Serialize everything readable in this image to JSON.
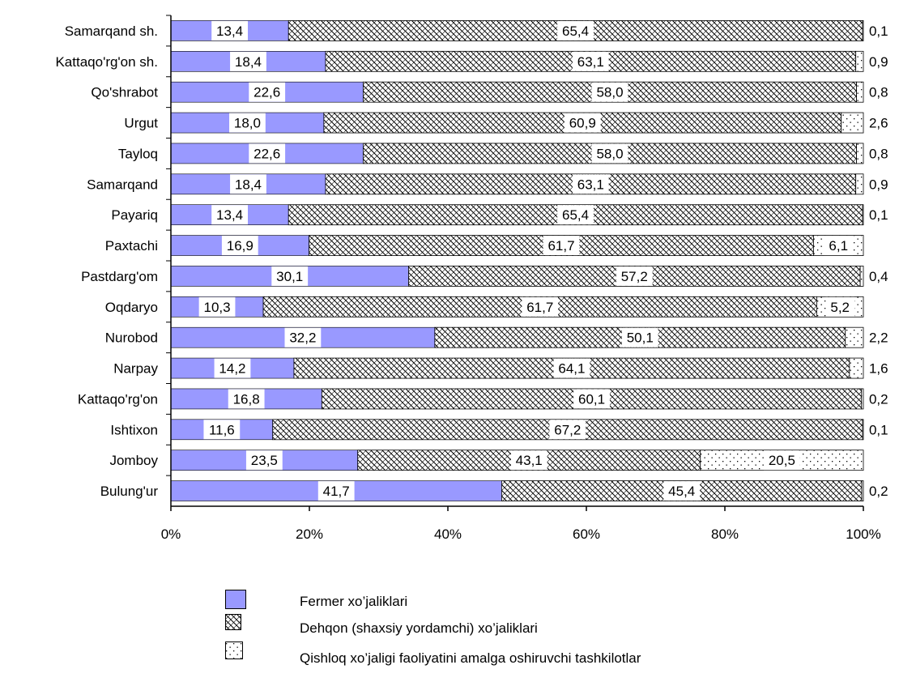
{
  "chart_data": {
    "type": "bar",
    "orientation": "horizontal",
    "stacked": "percent",
    "categories": [
      "Samarqand sh.",
      "Kattaqo'rg'on sh.",
      "Qo'shrabot",
      "Urgut",
      "Tayloq",
      "Samarqand",
      "Payariq",
      "Paxtachi",
      "Pastdarg'om",
      "Oqdaryo",
      "Nurobod",
      "Narpay",
      "Kattaqo'rg'on",
      "Ishtixon",
      "Jomboy",
      "Bulung'ur"
    ],
    "series": [
      {
        "name": "Fermer xo’jaliklari",
        "color": "#9999ff",
        "values": [
          13.4,
          18.4,
          22.6,
          18.0,
          22.6,
          18.4,
          13.4,
          16.9,
          30.1,
          10.3,
          32.2,
          14.2,
          16.8,
          11.6,
          23.5,
          41.7
        ],
        "labels": [
          "13,4",
          "18,4",
          "22,6",
          "18,0",
          "22,6",
          "18,4",
          "13,4",
          "16,9",
          "30,1",
          "10,3",
          "32,2",
          "14,2",
          "16,8",
          "11,6",
          "23,5",
          "41,7"
        ]
      },
      {
        "name": "Dehqon (shaxsiy yordamchi) xo’jaliklari",
        "values": [
          65.4,
          63.1,
          58.0,
          60.9,
          58.0,
          63.1,
          65.4,
          61.7,
          57.2,
          61.7,
          50.1,
          64.1,
          60.1,
          67.2,
          43.1,
          45.4
        ],
        "labels": [
          "65,4",
          "63,1",
          "58,0",
          "60,9",
          "58,0",
          "63,1",
          "65,4",
          "61,7",
          "57,2",
          "61,7",
          "50,1",
          "64,1",
          "60,1",
          "67,2",
          "43,1",
          "45,4"
        ]
      },
      {
        "name": "Qishloq xo’jaligi faoliyatini amalga oshiruvchi  tashkilotlar",
        "values": [
          0.1,
          0.9,
          0.8,
          2.6,
          0.8,
          0.9,
          0.1,
          6.1,
          0.4,
          5.2,
          2.2,
          1.6,
          0.2,
          0.1,
          20.5,
          0.2
        ],
        "labels": [
          "0,1",
          "0,9",
          "0,8",
          "2,6",
          "0,8",
          "0,9",
          "0,1",
          "6,1",
          "0,4",
          "5,2",
          "2,2",
          "1,6",
          "0,2",
          "0,1",
          "20,5",
          "0,2"
        ]
      }
    ],
    "x_ticks": [
      "0%",
      "20%",
      "40%",
      "60%",
      "80%",
      "100%"
    ],
    "xlim": [
      0,
      100
    ],
    "grid": false,
    "legend_position": "bottom"
  }
}
